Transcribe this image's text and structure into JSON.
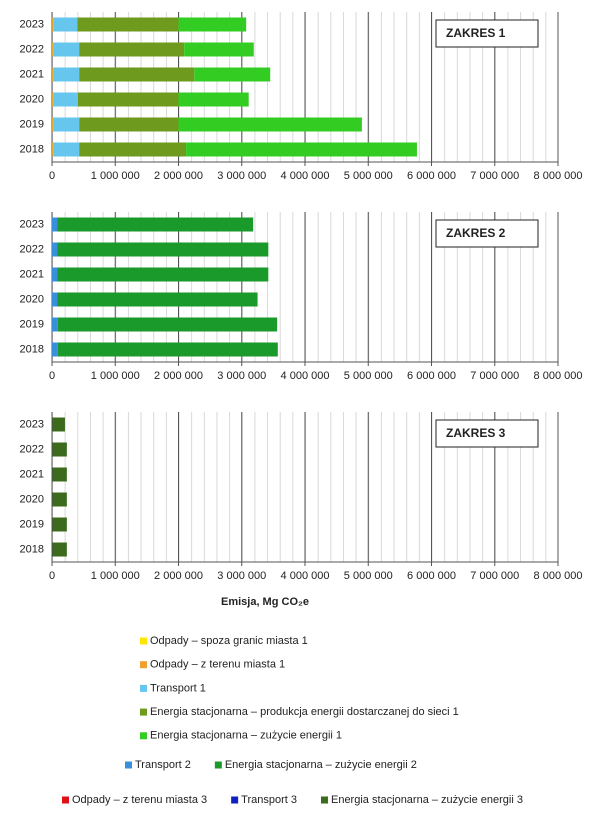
{
  "chart_data": [
    {
      "type": "bar",
      "title": "ZAKRES 1",
      "categories": [
        "2023",
        "2022",
        "2021",
        "2020",
        "2019",
        "2018"
      ],
      "series": [
        {
          "name": "Odpady – spoza granic miasta 1",
          "color": "#ffe600",
          "values": [
            5000,
            5000,
            5000,
            5000,
            5000,
            5000
          ]
        },
        {
          "name": "Odpady – z terenu miasta 1",
          "color": "#f0a030",
          "values": [
            15000,
            15000,
            15000,
            15000,
            15000,
            15000
          ]
        },
        {
          "name": "Transport 1",
          "color": "#66c6ee",
          "values": [
            380000,
            410000,
            410000,
            390000,
            410000,
            410000
          ]
        },
        {
          "name": "Energia stacjonarna – produkcja energii dostarczanej do sieci 1",
          "color": "#6e9a1e",
          "values": [
            1600000,
            1660000,
            1820000,
            1590000,
            1570000,
            1690000
          ]
        },
        {
          "name": "Energia stacjonarna – zużycie energii 1",
          "color": "#33cc22",
          "values": [
            1070000,
            1100000,
            1200000,
            1110000,
            2900000,
            3650000
          ]
        }
      ],
      "xlim": [
        0,
        8000000
      ],
      "xticks": [
        0,
        {
          "value": 1000000,
          "label": "1 000 000"
        },
        {
          "value": 2000000,
          "label": "2 000 000"
        },
        {
          "value": 3000000,
          "label": "3 000 000"
        },
        {
          "value": 4000000,
          "label": "4 000 000"
        },
        {
          "value": 5000000,
          "label": "5 000 000"
        },
        {
          "value": 6000000,
          "label": "6 000 000"
        },
        {
          "value": 7000000,
          "label": "7 000 000"
        },
        {
          "value": 8000000,
          "label": "8 000 000"
        }
      ]
    },
    {
      "type": "bar",
      "title": "ZAKRES 2",
      "categories": [
        "2023",
        "2022",
        "2021",
        "2020",
        "2019",
        "2018"
      ],
      "series": [
        {
          "name": "Transport 2",
          "color": "#3a8fdc",
          "values": [
            80000,
            80000,
            80000,
            80000,
            90000,
            90000
          ]
        },
        {
          "name": "Energia stacjonarna – zużycie energii 2",
          "color": "#1a9a2a",
          "values": [
            3100000,
            3340000,
            3340000,
            3170000,
            3470000,
            3480000
          ]
        }
      ],
      "xlim": [
        0,
        8000000
      ],
      "xticks": [
        0,
        {
          "value": 1000000,
          "label": "1 000 000"
        },
        {
          "value": 2000000,
          "label": "2 000 000"
        },
        {
          "value": 3000000,
          "label": "3 000 000"
        },
        {
          "value": 4000000,
          "label": "4 000 000"
        },
        {
          "value": 5000000,
          "label": "5 000 000"
        },
        {
          "value": 6000000,
          "label": "6 000 000"
        },
        {
          "value": 7000000,
          "label": "7 000 000"
        },
        {
          "value": 8000000,
          "label": "8 000 000"
        }
      ]
    },
    {
      "type": "bar",
      "title": "ZAKRES 3",
      "x_label": "Emisja, Mg CO₂e",
      "categories": [
        "2023",
        "2022",
        "2021",
        "2020",
        "2019",
        "2018"
      ],
      "series": [
        {
          "name": "Odpady – z terenu miasta 3",
          "color": "#e0101a",
          "values": [
            2000,
            2000,
            2000,
            2000,
            2000,
            2000
          ]
        },
        {
          "name": "Transport 3",
          "color": "#1020c0",
          "values": [
            3000,
            3000,
            3000,
            3000,
            3000,
            3000
          ]
        },
        {
          "name": "Energia stacjonarna – zużycie energii 3",
          "color": "#3d6b1e",
          "values": [
            200000,
            230000,
            230000,
            230000,
            230000,
            230000
          ]
        }
      ],
      "xlim": [
        0,
        8000000
      ],
      "xticks": [
        0,
        {
          "value": 1000000,
          "label": "1 000 000"
        },
        {
          "value": 2000000,
          "label": "2 000 000"
        },
        {
          "value": 3000000,
          "label": "3 000 000"
        },
        {
          "value": 4000000,
          "label": "4 000 000"
        },
        {
          "value": 5000000,
          "label": "5 000 000"
        },
        {
          "value": 6000000,
          "label": "6 000 000"
        },
        {
          "value": 7000000,
          "label": "7 000 000"
        },
        {
          "value": 8000000,
          "label": "8 000 000"
        }
      ]
    }
  ]
}
